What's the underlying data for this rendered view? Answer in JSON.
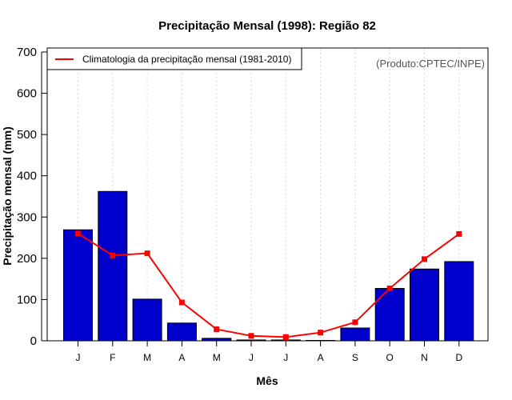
{
  "chart_data": {
    "type": "bar",
    "title": "Precipitação Mensal (1998): Região 82",
    "xlabel": "Mês",
    "ylabel": "Precipitação mensal (mm)",
    "ylim": [
      0,
      700
    ],
    "yticks": [
      0,
      100,
      200,
      300,
      400,
      500,
      600,
      700
    ],
    "categories": [
      "J",
      "F",
      "M",
      "A",
      "M",
      "J",
      "J",
      "A",
      "S",
      "O",
      "N",
      "D"
    ],
    "grid": "vertical dotted at each month",
    "series": [
      {
        "name": "Precipitação mensal (1998)",
        "type": "bar",
        "color": "#0000CD",
        "values": [
          269,
          362,
          101,
          43,
          6,
          2,
          2,
          1,
          31,
          127,
          174,
          192
        ]
      },
      {
        "name": "Climatologia da precipitação mensal (1981-2010)",
        "type": "line",
        "color": "#FF0000",
        "values": [
          260,
          207,
          212,
          93,
          28,
          12,
          9,
          20,
          45,
          127,
          198,
          259
        ]
      }
    ],
    "legend": {
      "position": "top-left",
      "entries": [
        "Climatologia da precipitação mensal (1981-2010)"
      ]
    },
    "annotation": "(Produto:CPTEC/INPE)"
  }
}
